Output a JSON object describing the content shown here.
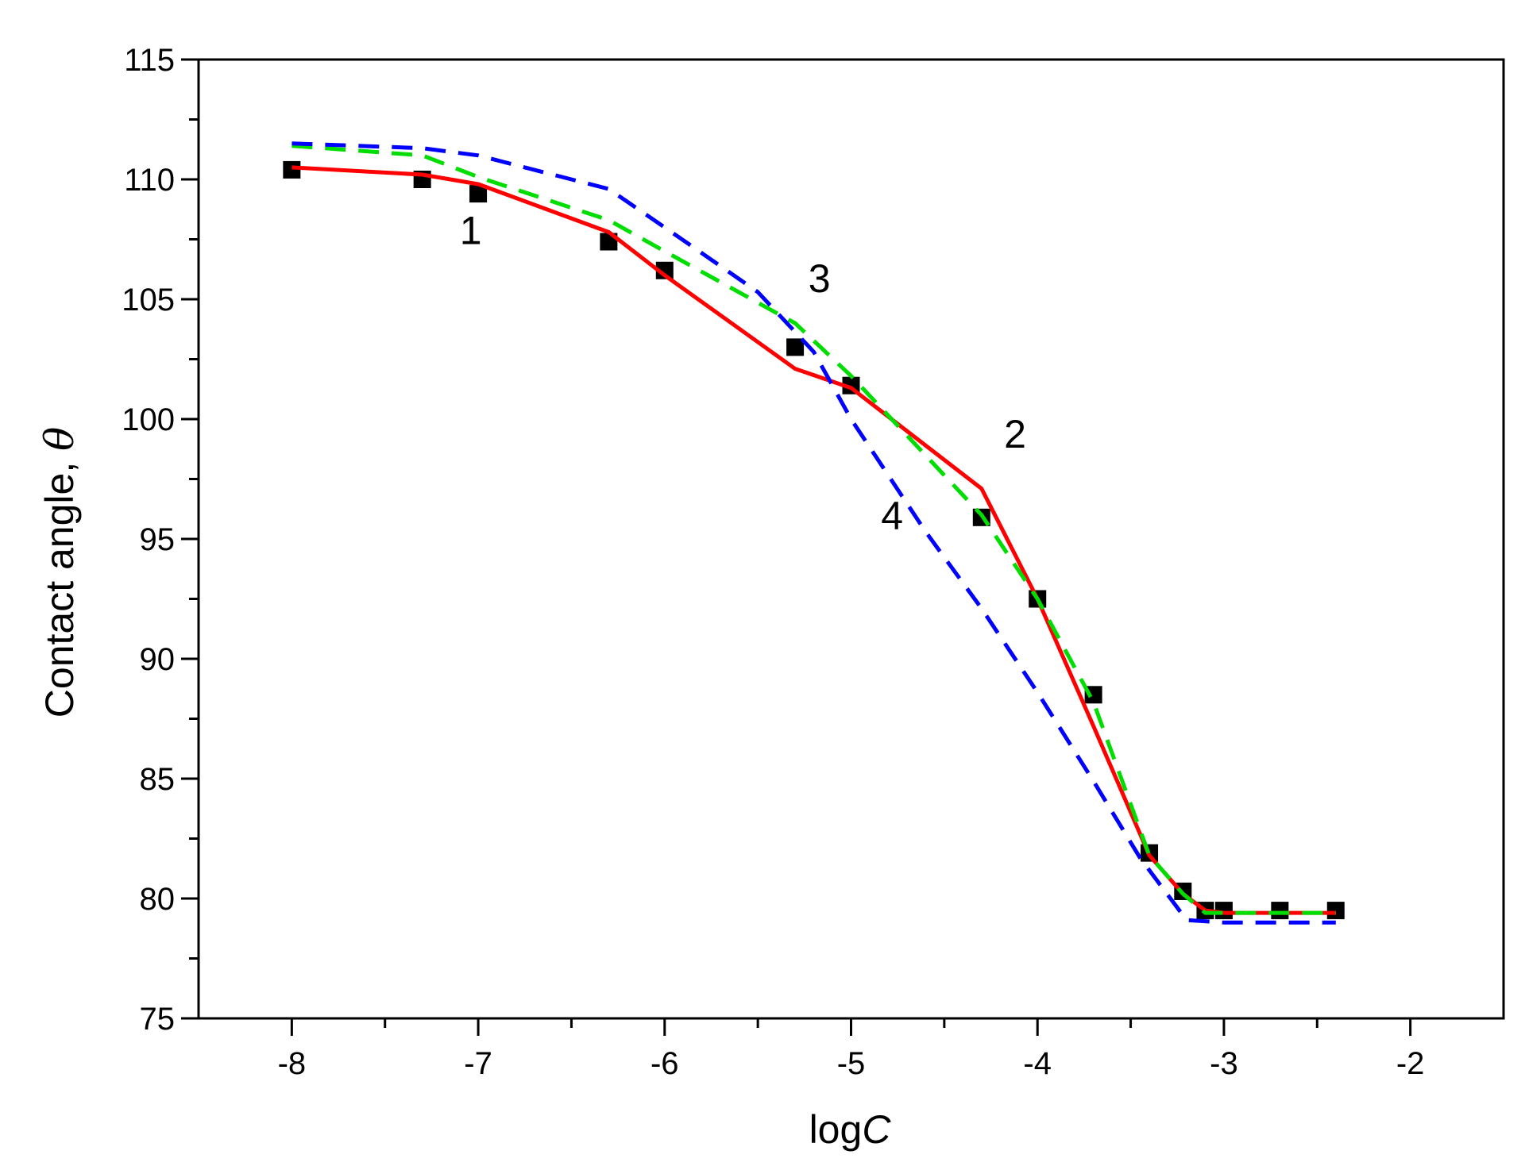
{
  "chart_data": {
    "type": "line",
    "xlabel": {
      "prefix": "log",
      "var": "C"
    },
    "ylabel": {
      "text": "Contact angle, ",
      "var": "θ"
    },
    "xlim": [
      -8.5,
      -1.5
    ],
    "ylim": [
      75,
      115
    ],
    "xticks": [
      -8,
      -7,
      -6,
      -5,
      -4,
      -3,
      -2
    ],
    "yticks": [
      75,
      80,
      85,
      90,
      95,
      100,
      105,
      110,
      115
    ],
    "xtick_labels": [
      "-8",
      "-7",
      "-6",
      "-5",
      "-4",
      "-3",
      "-2"
    ],
    "ytick_labels": [
      "75",
      "80",
      "85",
      "90",
      "95",
      "100",
      "105",
      "110",
      "115"
    ],
    "grid": false,
    "series": [
      {
        "style": "markers",
        "color": "#000000",
        "points": [
          [
            -8.0,
            110.4
          ],
          [
            -7.3,
            110.0
          ],
          [
            -7.0,
            109.4
          ],
          [
            -6.3,
            107.4
          ],
          [
            -6.0,
            106.2
          ],
          [
            -5.3,
            103.0
          ],
          [
            -5.0,
            101.4
          ],
          [
            -4.3,
            95.9
          ],
          [
            -4.0,
            92.5
          ],
          [
            -3.7,
            88.5
          ],
          [
            -3.4,
            81.9
          ],
          [
            -3.22,
            80.3
          ],
          [
            -3.1,
            79.5
          ],
          [
            -3.0,
            79.5
          ],
          [
            -2.7,
            79.5
          ],
          [
            -2.4,
            79.5
          ]
        ]
      },
      {
        "style": "solid",
        "color": "#ff0000",
        "points": [
          [
            -8.0,
            110.5
          ],
          [
            -7.3,
            110.2
          ],
          [
            -7.0,
            109.8
          ],
          [
            -6.3,
            107.8
          ],
          [
            -6.0,
            106.0
          ],
          [
            -5.3,
            102.1
          ],
          [
            -5.0,
            101.3
          ],
          [
            -4.3,
            97.1
          ],
          [
            -4.0,
            92.5
          ],
          [
            -3.7,
            87.2
          ],
          [
            -3.4,
            81.8
          ],
          [
            -3.22,
            80.2
          ],
          [
            -3.1,
            79.5
          ],
          [
            -3.0,
            79.4
          ],
          [
            -2.7,
            79.4
          ],
          [
            -2.4,
            79.4
          ]
        ]
      },
      {
        "style": "dashed",
        "color": "#00dd00",
        "points": [
          [
            -8.0,
            111.4
          ],
          [
            -7.3,
            111.0
          ],
          [
            -7.0,
            110.1
          ],
          [
            -6.3,
            108.3
          ],
          [
            -6.0,
            107.0
          ],
          [
            -5.3,
            104.0
          ],
          [
            -5.0,
            101.8
          ],
          [
            -4.3,
            96.0
          ],
          [
            -4.0,
            92.5
          ],
          [
            -3.7,
            88.2
          ],
          [
            -3.4,
            81.8
          ],
          [
            -3.22,
            80.2
          ],
          [
            -3.1,
            79.4
          ],
          [
            -3.0,
            79.4
          ],
          [
            -2.7,
            79.4
          ],
          [
            -2.4,
            79.4
          ]
        ]
      },
      {
        "style": "dashed",
        "color": "#0000ff",
        "points": [
          [
            -8.0,
            111.5
          ],
          [
            -7.3,
            111.3
          ],
          [
            -7.0,
            111.0
          ],
          [
            -6.3,
            109.6
          ],
          [
            -6.0,
            108.0
          ],
          [
            -5.5,
            105.3
          ],
          [
            -5.2,
            102.8
          ],
          [
            -5.0,
            100.0
          ],
          [
            -4.6,
            95.3
          ],
          [
            -4.3,
            92.1
          ],
          [
            -4.0,
            88.6
          ],
          [
            -3.7,
            84.9
          ],
          [
            -3.45,
            81.7
          ],
          [
            -3.2,
            79.1
          ],
          [
            -3.0,
            79.0
          ],
          [
            -2.4,
            79.0
          ]
        ]
      }
    ],
    "curve_labels": [
      {
        "text": "1",
        "x": -7.04,
        "y": 107.3
      },
      {
        "text": "2",
        "x": -4.12,
        "y": 98.8
      },
      {
        "text": "3",
        "x": -5.17,
        "y": 105.3
      },
      {
        "text": "4",
        "x": -4.78,
        "y": 95.4
      }
    ]
  }
}
